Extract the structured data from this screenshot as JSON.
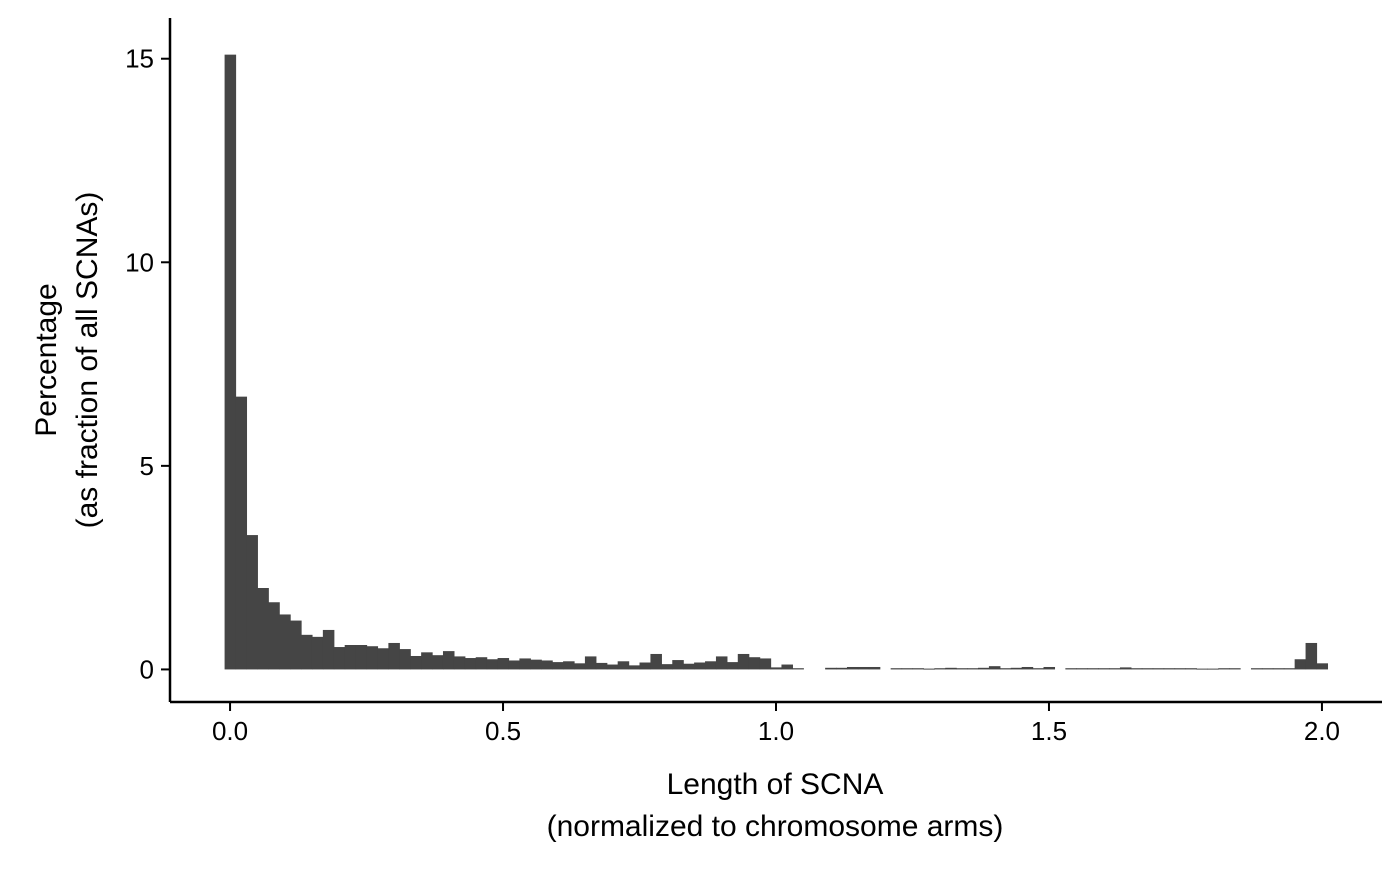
{
  "chart_data": {
    "type": "bar",
    "subtype": "histogram",
    "bin_width": 0.02,
    "xlabel_line1": "Length of SCNA",
    "xlabel_line2": "(normalized to chromosome arms)",
    "ylabel_line1": "Percentage",
    "ylabel_line2": "(as fraction of all SCNAs)",
    "xlim": [
      -0.11,
      2.11
    ],
    "ylim": [
      -0.8,
      16.0
    ],
    "x_ticks": [
      0.0,
      0.5,
      1.0,
      1.5,
      2.0
    ],
    "x_tick_labels": [
      "0.0",
      "0.5",
      "1.0",
      "1.5",
      "2.0"
    ],
    "y_ticks": [
      0,
      5,
      10,
      15
    ],
    "y_tick_labels": [
      "0",
      "5",
      "10",
      "15"
    ],
    "grid": false,
    "legend": "none",
    "bar_color": "#454545",
    "bin_centers": [
      0.0,
      0.02,
      0.04,
      0.06,
      0.08,
      0.1,
      0.12,
      0.14,
      0.16,
      0.18,
      0.2,
      0.22,
      0.24,
      0.26,
      0.28,
      0.3,
      0.32,
      0.34,
      0.36,
      0.38,
      0.4,
      0.42,
      0.44,
      0.46,
      0.48,
      0.5,
      0.52,
      0.54,
      0.56,
      0.58,
      0.6,
      0.62,
      0.64,
      0.66,
      0.68,
      0.7,
      0.72,
      0.74,
      0.76,
      0.78,
      0.8,
      0.82,
      0.84,
      0.86,
      0.88,
      0.9,
      0.92,
      0.94,
      0.96,
      0.98,
      1.0,
      1.02,
      1.04,
      1.06,
      1.08,
      1.1,
      1.12,
      1.14,
      1.16,
      1.18,
      1.2,
      1.22,
      1.24,
      1.26,
      1.28,
      1.3,
      1.32,
      1.34,
      1.36,
      1.38,
      1.4,
      1.42,
      1.44,
      1.46,
      1.48,
      1.5,
      1.52,
      1.54,
      1.56,
      1.58,
      1.6,
      1.62,
      1.64,
      1.66,
      1.68,
      1.7,
      1.72,
      1.74,
      1.76,
      1.78,
      1.8,
      1.82,
      1.84,
      1.86,
      1.88,
      1.9,
      1.92,
      1.94,
      1.96,
      1.98,
      2.0
    ],
    "values": [
      15.1,
      6.7,
      3.3,
      2.0,
      1.65,
      1.35,
      1.2,
      0.85,
      0.8,
      0.97,
      0.55,
      0.6,
      0.6,
      0.57,
      0.52,
      0.65,
      0.5,
      0.33,
      0.42,
      0.35,
      0.45,
      0.32,
      0.28,
      0.3,
      0.25,
      0.28,
      0.22,
      0.27,
      0.24,
      0.22,
      0.18,
      0.2,
      0.15,
      0.32,
      0.16,
      0.12,
      0.2,
      0.1,
      0.17,
      0.38,
      0.13,
      0.23,
      0.14,
      0.17,
      0.2,
      0.32,
      0.18,
      0.38,
      0.3,
      0.27,
      0.05,
      0.12,
      0.03,
      0.0,
      0.0,
      0.04,
      0.04,
      0.06,
      0.06,
      0.06,
      0.0,
      0.03,
      0.03,
      0.03,
      0.02,
      0.03,
      0.04,
      0.03,
      0.03,
      0.04,
      0.08,
      0.03,
      0.04,
      0.06,
      0.03,
      0.06,
      0.0,
      0.03,
      0.03,
      0.03,
      0.03,
      0.03,
      0.05,
      0.03,
      0.03,
      0.03,
      0.03,
      0.03,
      0.03,
      0.02,
      0.02,
      0.03,
      0.03,
      0.0,
      0.03,
      0.03,
      0.03,
      0.03,
      0.25,
      0.65,
      0.15
    ]
  }
}
